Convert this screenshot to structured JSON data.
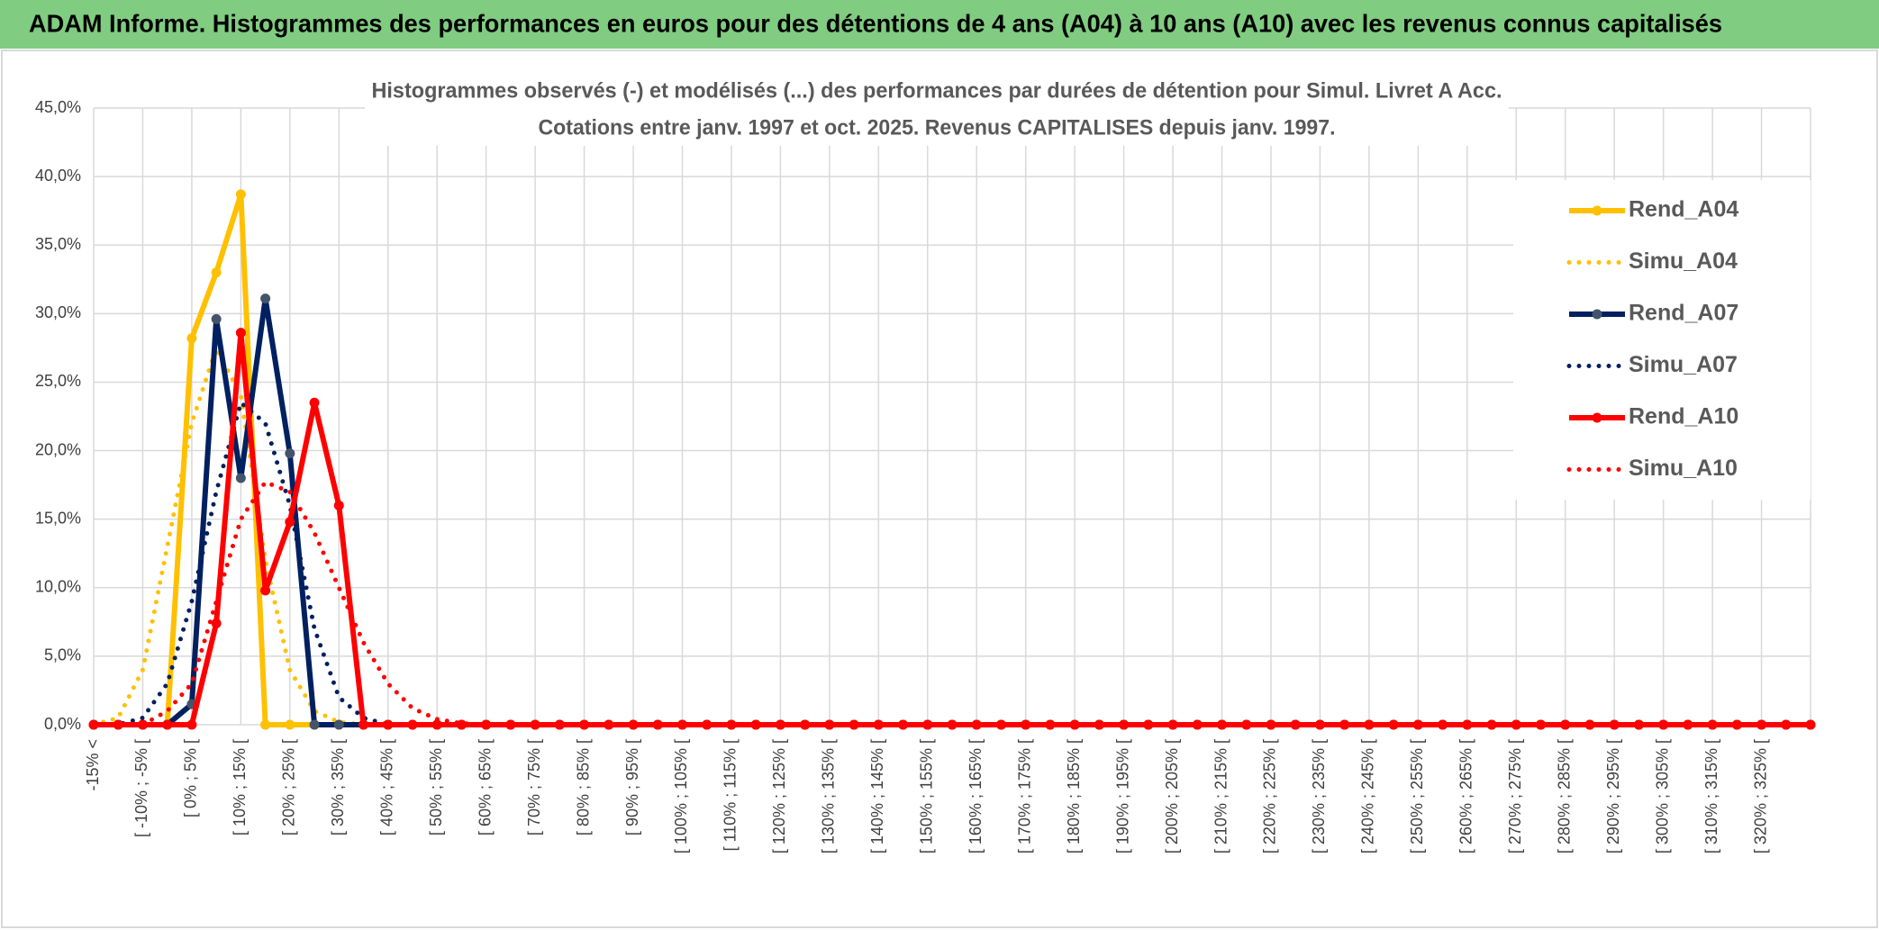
{
  "chart_data": {
    "type": "line",
    "header": "ADAM Informe. Histogrammes des performances en euros pour des détentions de 4 ans (A04) à 10 ans (A10) avec les revenus connus capitalisés",
    "title": "Histogrammes observés (-) et modélisés (...) des performances par durées de détention pour Simul. Livret A Acc.",
    "subtitle": "Cotations entre janv. 1997 et oct. 2025. Revenus CAPITALISES depuis janv. 1997.",
    "categories": [
      "-15% <",
      null,
      "[ -10% ; -5% [",
      null,
      "[ 0% ; 5% [",
      null,
      "[ 10% ; 15% [",
      null,
      "[ 20% ; 25% [",
      null,
      "[ 30% ; 35% [",
      null,
      "[ 40% ; 45% [",
      null,
      "[ 50% ; 55% [",
      null,
      "[ 60% ; 65% [",
      null,
      "[ 70% ; 75% [",
      null,
      "[ 80% ; 85% [",
      null,
      "[ 90% ; 95% [",
      null,
      "[ 100% ; 105% [",
      null,
      "[ 110% ; 115% [",
      null,
      "[ 120% ; 125% [",
      null,
      "[ 130% ; 135% [",
      null,
      "[ 140% ; 145% [",
      null,
      "[ 150% ; 155% [",
      null,
      "[ 160% ; 165% [",
      null,
      "[ 170% ; 175% [",
      null,
      "[ 180% ; 185% [",
      null,
      "[ 190% ; 195% [",
      null,
      "[ 200% ; 205% [",
      null,
      "[ 210% ; 215% [",
      null,
      "[ 220% ; 225% [",
      null,
      "[ 230% ; 235% [",
      null,
      "[ 240% ; 245% [",
      null,
      "[ 250% ; 255% [",
      null,
      "[ 260% ; 265% [",
      null,
      "[ 270% ; 275% [",
      null,
      "[ 280% ; 285% [",
      null,
      "[ 290% ; 295% [",
      null,
      "[ 300% ; 305% [",
      null,
      "[ 310% ; 315% [",
      null,
      "[ 320% ; 325% [",
      null,
      null
    ],
    "series": [
      {
        "name": "Rend_A04",
        "color": "#ffc000",
        "style": "solid",
        "markers": true,
        "marker_color": "#ffc000",
        "values": [
          0,
          0,
          0,
          0,
          28.2,
          33,
          38.7,
          0,
          0,
          0,
          0,
          0,
          0,
          0,
          0,
          0,
          0,
          0,
          0,
          0,
          0,
          0,
          0,
          0,
          0,
          0,
          0,
          0,
          0,
          0,
          0,
          0,
          0,
          0,
          0,
          0,
          0,
          0,
          0,
          0,
          0,
          0,
          0,
          0,
          0,
          0,
          0,
          0,
          0,
          0,
          0,
          0,
          0,
          0,
          0,
          0,
          0,
          0,
          0,
          0,
          0,
          0,
          0,
          0,
          0,
          0,
          0,
          0,
          0,
          0,
          0
        ]
      },
      {
        "name": "Simu_A04",
        "color": "#ffc000",
        "style": "dotted",
        "markers": false,
        "values": [
          0,
          0.5,
          4,
          13,
          22,
          27.5,
          24,
          12,
          4,
          1,
          0.2,
          0,
          0,
          0,
          0,
          0,
          0,
          0,
          0,
          0,
          0,
          0,
          0,
          0,
          0,
          0,
          0,
          0,
          0,
          0,
          0,
          0,
          0,
          0,
          0,
          0,
          0,
          0,
          0,
          0,
          0,
          0,
          0,
          0,
          0,
          0,
          0,
          0,
          0,
          0,
          0,
          0,
          0,
          0,
          0,
          0,
          0,
          0,
          0,
          0,
          0,
          0,
          0,
          0,
          0,
          0,
          0,
          0,
          0,
          0,
          0
        ]
      },
      {
        "name": "Rend_A07",
        "color": "#002060",
        "style": "solid",
        "markers": true,
        "marker_color": "#44546a",
        "values": [
          0,
          0,
          0,
          0,
          1.5,
          29.6,
          18,
          31.1,
          19.8,
          0,
          0,
          0,
          0,
          0,
          0,
          0,
          0,
          0,
          0,
          0,
          0,
          0,
          0,
          0,
          0,
          0,
          0,
          0,
          0,
          0,
          0,
          0,
          0,
          0,
          0,
          0,
          0,
          0,
          0,
          0,
          0,
          0,
          0,
          0,
          0,
          0,
          0,
          0,
          0,
          0,
          0,
          0,
          0,
          0,
          0,
          0,
          0,
          0,
          0,
          0,
          0,
          0,
          0,
          0,
          0,
          0,
          0,
          0,
          0,
          0,
          0
        ]
      },
      {
        "name": "Simu_A07",
        "color": "#002060",
        "style": "dotted",
        "markers": false,
        "values": [
          0,
          0,
          0.5,
          3,
          9,
          17,
          23.5,
          22,
          16,
          7,
          2,
          0.5,
          0,
          0,
          0,
          0,
          0,
          0,
          0,
          0,
          0,
          0,
          0,
          0,
          0,
          0,
          0,
          0,
          0,
          0,
          0,
          0,
          0,
          0,
          0,
          0,
          0,
          0,
          0,
          0,
          0,
          0,
          0,
          0,
          0,
          0,
          0,
          0,
          0,
          0,
          0,
          0,
          0,
          0,
          0,
          0,
          0,
          0,
          0,
          0,
          0,
          0,
          0,
          0,
          0,
          0,
          0,
          0,
          0,
          0,
          0
        ]
      },
      {
        "name": "Rend_A10",
        "color": "#ff0000",
        "style": "solid",
        "markers": true,
        "marker_color": "#ff0000",
        "values": [
          0,
          0,
          0,
          0,
          0,
          7.4,
          28.6,
          9.8,
          14.8,
          23.5,
          16,
          0,
          0,
          0,
          0,
          0,
          0,
          0,
          0,
          0,
          0,
          0,
          0,
          0,
          0,
          0,
          0,
          0,
          0,
          0,
          0,
          0,
          0,
          0,
          0,
          0,
          0,
          0,
          0,
          0,
          0,
          0,
          0,
          0,
          0,
          0,
          0,
          0,
          0,
          0,
          0,
          0,
          0,
          0,
          0,
          0,
          0,
          0,
          0,
          0,
          0,
          0,
          0,
          0,
          0,
          0,
          0,
          0,
          0,
          0,
          0
        ]
      },
      {
        "name": "Simu_A10",
        "color": "#ff0000",
        "style": "dotted",
        "markers": false,
        "values": [
          0,
          0,
          0,
          1,
          3,
          9,
          15,
          17.7,
          17,
          14,
          10,
          6,
          3,
          1.2,
          0.4,
          0.1,
          0,
          0,
          0,
          0,
          0,
          0,
          0,
          0,
          0,
          0,
          0,
          0,
          0,
          0,
          0,
          0,
          0,
          0,
          0,
          0,
          0,
          0,
          0,
          0,
          0,
          0,
          0,
          0,
          0,
          0,
          0,
          0,
          0,
          0,
          0,
          0,
          0,
          0,
          0,
          0,
          0,
          0,
          0,
          0,
          0,
          0,
          0,
          0,
          0,
          0,
          0,
          0,
          0,
          0,
          0
        ]
      }
    ],
    "ylim": [
      0,
      45
    ],
    "yticks": [
      {
        "value": 0,
        "label": "0,0%"
      },
      {
        "value": 5,
        "label": "5,0%"
      },
      {
        "value": 10,
        "label": "10,0%"
      },
      {
        "value": 15,
        "label": "15,0%"
      },
      {
        "value": 20,
        "label": "20,0%"
      },
      {
        "value": 25,
        "label": "25,0%"
      },
      {
        "value": 30,
        "label": "30,0%"
      },
      {
        "value": 35,
        "label": "35,0%"
      },
      {
        "value": 40,
        "label": "40,0%"
      },
      {
        "value": 45,
        "label": "45,0%"
      }
    ],
    "grid": true,
    "legend": "right"
  }
}
